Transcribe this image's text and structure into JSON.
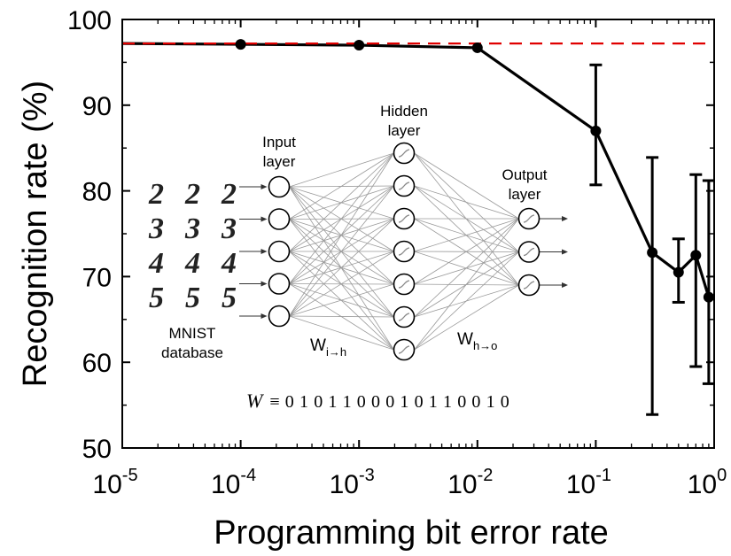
{
  "chart_data": {
    "type": "line",
    "xlabel": "Programming bit error rate",
    "ylabel": "Recognition rate (%)",
    "x_scale": "log",
    "xlim": [
      1e-05,
      1
    ],
    "ylim": [
      50,
      100
    ],
    "x_ticks": [
      {
        "base": "10",
        "exp": "-5"
      },
      {
        "base": "10",
        "exp": "-4"
      },
      {
        "base": "10",
        "exp": "-3"
      },
      {
        "base": "10",
        "exp": "-2"
      },
      {
        "base": "10",
        "exp": "-1"
      },
      {
        "base": "10",
        "exp": "0"
      }
    ],
    "y_ticks": [
      "50",
      "60",
      "70",
      "80",
      "90",
      "100"
    ],
    "series": [
      {
        "x": [
          0.0001,
          0.001,
          0.01,
          0.1,
          0.3,
          0.5,
          0.7,
          0.9
        ],
        "y": [
          97.1,
          97.0,
          96.7,
          87.0,
          72.8,
          70.5,
          72.5,
          67.6
        ],
        "err_low": [
          0.2,
          0.2,
          0.2,
          6.3,
          18.9,
          3.5,
          13.0,
          10.1
        ],
        "err_high": [
          0.2,
          0.2,
          0.2,
          7.7,
          11.1,
          3.9,
          9.4,
          13.6
        ],
        "color": "#000000",
        "start": {
          "x": 1e-05,
          "y": 97.2
        }
      }
    ],
    "reference_line": {
      "y": 97.2,
      "color": "#e00000",
      "style": "dashed"
    },
    "inset": {
      "input_label": [
        "Input",
        "layer"
      ],
      "hidden_label": [
        "Hidden",
        "layer"
      ],
      "output_label": [
        "Output",
        "layer"
      ],
      "dataset_label": [
        "MNIST",
        "database"
      ],
      "weight_ih": {
        "base": "W",
        "sub": "i→h"
      },
      "weight_ho": {
        "base": "W",
        "sub": "h→o"
      },
      "weight_equation": {
        "symbol": "W",
        "rest": "≡ 0 1 0 1 1 0 0 0 1 0 1 1 0 0 1 0"
      },
      "digits": [
        [
          "2",
          "2",
          "2"
        ],
        [
          "3",
          "3",
          "3"
        ],
        [
          "4",
          "4",
          "4"
        ],
        [
          "5",
          "5",
          "5"
        ]
      ],
      "input_neurons": 5,
      "hidden_neurons": 7,
      "output_neurons": 3
    }
  }
}
